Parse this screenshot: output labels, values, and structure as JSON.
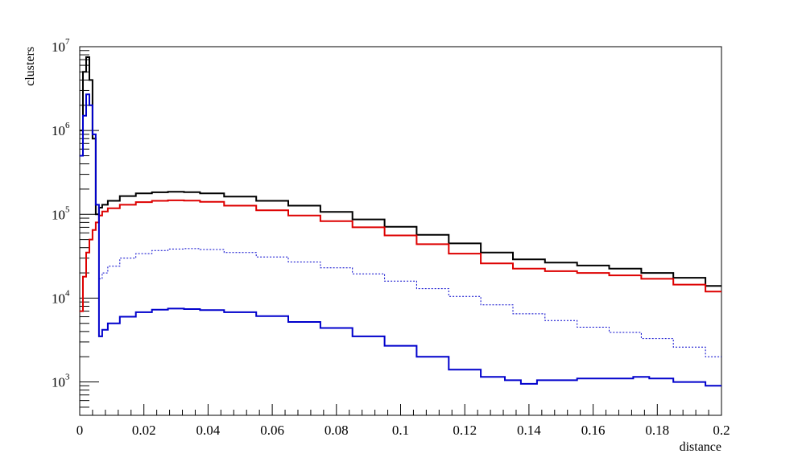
{
  "chart_data": {
    "type": "histogram",
    "title": "",
    "xlabel": "distance",
    "ylabel": "clusters",
    "xlim": [
      0,
      0.2
    ],
    "ylim": [
      400,
      10000000
    ],
    "y_scale": "log",
    "grid": false,
    "legend": "none",
    "x_ticks": [
      "0",
      "0.02",
      "0.04",
      "0.06",
      "0.08",
      "0.1",
      "0.12",
      "0.14",
      "0.16",
      "0.18",
      "0.2"
    ],
    "y_ticks": [
      {
        "base": "10",
        "exp": "3",
        "value": 1000
      },
      {
        "base": "10",
        "exp": "4",
        "value": 10000
      },
      {
        "base": "10",
        "exp": "5",
        "value": 100000
      },
      {
        "base": "10",
        "exp": "6",
        "value": 1000000
      },
      {
        "base": "10",
        "exp": "7",
        "value": 10000000
      }
    ],
    "series": [
      {
        "color": "#000000",
        "style": "solid-thick",
        "x": [
          0.0005,
          0.0015,
          0.0025,
          0.0035,
          0.0045,
          0.0055,
          0.0065,
          0.0075,
          0.01,
          0.015,
          0.02,
          0.025,
          0.03,
          0.035,
          0.04,
          0.05,
          0.06,
          0.07,
          0.08,
          0.09,
          0.1,
          0.11,
          0.12,
          0.13,
          0.14,
          0.15,
          0.16,
          0.17,
          0.18,
          0.19,
          0.2
        ],
        "y": [
          1000000,
          5000000,
          7500000,
          4000000,
          800000,
          100000,
          120000,
          130000,
          145000,
          165000,
          178000,
          183000,
          186000,
          184000,
          178000,
          163000,
          145000,
          127000,
          107000,
          87000,
          71000,
          57000,
          45000,
          35000,
          29000,
          26500,
          24500,
          22500,
          20000,
          17500,
          14000
        ]
      },
      {
        "color": "#dd0000",
        "style": "solid-thick",
        "x": [
          0.0005,
          0.0015,
          0.0025,
          0.0035,
          0.0045,
          0.0055,
          0.0065,
          0.0075,
          0.01,
          0.015,
          0.02,
          0.025,
          0.03,
          0.035,
          0.04,
          0.05,
          0.06,
          0.07,
          0.08,
          0.09,
          0.1,
          0.11,
          0.12,
          0.13,
          0.14,
          0.15,
          0.16,
          0.17,
          0.18,
          0.19,
          0.2
        ],
        "y": [
          7000,
          18000,
          35000,
          50000,
          65000,
          80000,
          97000,
          108000,
          118000,
          130000,
          140000,
          145000,
          147000,
          146000,
          141000,
          127000,
          112000,
          97000,
          83000,
          70000,
          56000,
          44000,
          34000,
          26000,
          22500,
          21000,
          20000,
          18700,
          17000,
          14500,
          12000
        ]
      },
      {
        "color": "#0000cc",
        "style": "dotted",
        "x": [
          0.0065,
          0.0075,
          0.01,
          0.015,
          0.02,
          0.025,
          0.03,
          0.035,
          0.04,
          0.05,
          0.06,
          0.07,
          0.08,
          0.09,
          0.1,
          0.11,
          0.12,
          0.13,
          0.14,
          0.15,
          0.16,
          0.17,
          0.18,
          0.19,
          0.2
        ],
        "y": [
          17000,
          20000,
          24000,
          30000,
          34000,
          37000,
          38500,
          39000,
          38000,
          35000,
          31000,
          27000,
          23000,
          19500,
          16000,
          13000,
          10500,
          8300,
          6500,
          5400,
          4500,
          3900,
          3300,
          2600,
          2000
        ]
      },
      {
        "color": "#0000cc",
        "style": "solid-thick",
        "x": [
          0.0005,
          0.0015,
          0.0025,
          0.0035,
          0.0045,
          0.0055,
          0.0065,
          0.0075,
          0.01,
          0.015,
          0.02,
          0.025,
          0.03,
          0.035,
          0.04,
          0.05,
          0.06,
          0.07,
          0.08,
          0.09,
          0.1,
          0.11,
          0.12,
          0.13,
          0.135,
          0.14,
          0.145,
          0.15,
          0.16,
          0.17,
          0.175,
          0.18,
          0.19,
          0.2
        ],
        "y": [
          500000,
          1500000,
          2700000,
          2000000,
          900000,
          130000,
          3500,
          4200,
          5000,
          6000,
          6800,
          7300,
          7500,
          7400,
          7200,
          6800,
          6100,
          5200,
          4400,
          3500,
          2700,
          2000,
          1400,
          1150,
          1050,
          950,
          1050,
          1050,
          1100,
          1100,
          1150,
          1100,
          1000,
          900
        ]
      }
    ]
  }
}
